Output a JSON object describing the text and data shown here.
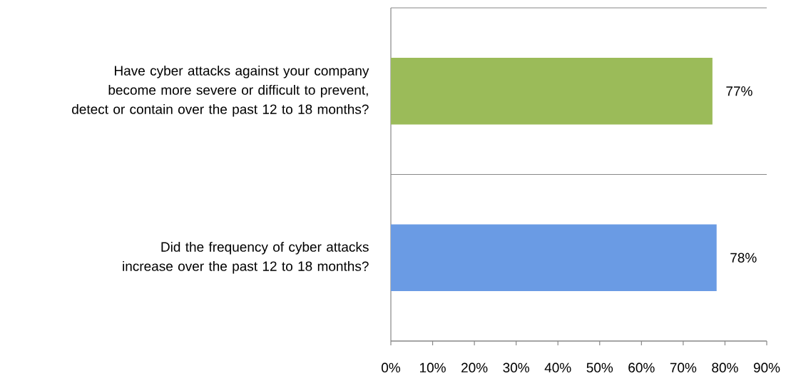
{
  "chart_data": {
    "type": "bar",
    "orientation": "horizontal",
    "categories": [
      "Have cyber attacks against your company become more severe or difficult to prevent, detect or contain over the past 12 to 18 months?",
      "Did the frequency of cyber attacks increase over the past 12 to 18 months?"
    ],
    "values": [
      77,
      78
    ],
    "colors": [
      "#9bbb59",
      "#6a9be4"
    ],
    "value_labels": [
      "77%",
      "78%"
    ],
    "xlim": [
      0,
      90
    ],
    "xticks": [
      {
        "value": 0,
        "label": "0%"
      },
      {
        "value": 10,
        "label": "10%"
      },
      {
        "value": 20,
        "label": "20%"
      },
      {
        "value": 30,
        "label": "30%"
      },
      {
        "value": 40,
        "label": "40%"
      },
      {
        "value": 50,
        "label": "50%"
      },
      {
        "value": 60,
        "label": "60%"
      },
      {
        "value": 70,
        "label": "70%"
      },
      {
        "value": 80,
        "label": "80%"
      },
      {
        "value": 90,
        "label": "90%"
      }
    ],
    "grid": "y"
  }
}
